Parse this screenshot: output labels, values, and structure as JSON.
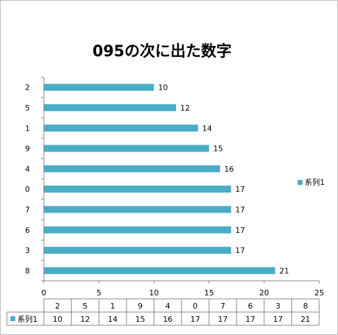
{
  "colors": {
    "bar": "#4bacc6",
    "axis": "#868686",
    "text": "#000000"
  },
  "chart_data": {
    "type": "bar",
    "orientation": "horizontal",
    "title": "095の次に出た数字",
    "categories": [
      "8",
      "3",
      "6",
      "7",
      "0",
      "4",
      "9",
      "1",
      "5",
      "2"
    ],
    "series": [
      {
        "name": "系列1",
        "values": [
          21,
          17,
          17,
          17,
          17,
          16,
          15,
          14,
          12,
          10
        ]
      }
    ],
    "xlim": [
      0,
      25
    ],
    "xticks": [
      "0",
      "5",
      "10",
      "15",
      "20",
      "25"
    ],
    "data_labels": true,
    "legend_position": "right",
    "data_table": true,
    "grid": false
  }
}
